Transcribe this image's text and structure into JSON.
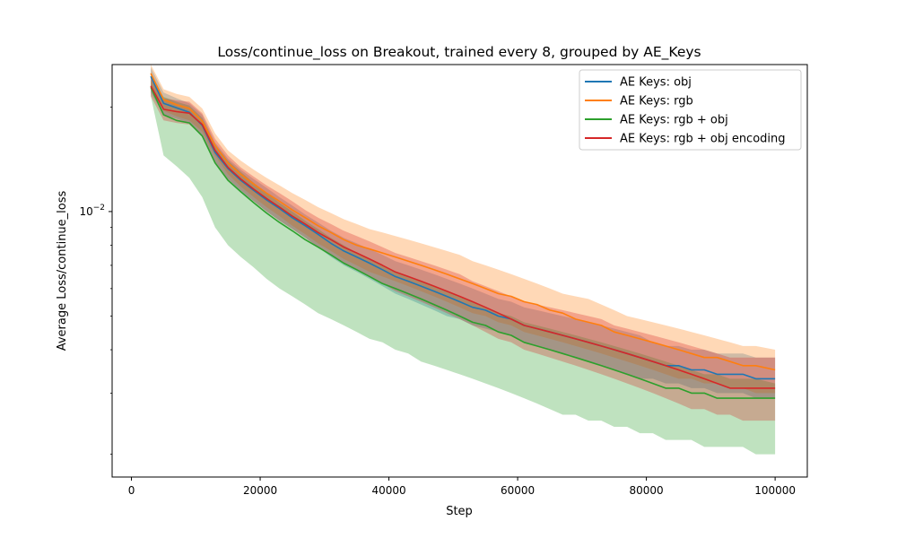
{
  "chart_data": {
    "type": "line",
    "title": "Loss/continue_loss on Breakout, trained every 8, grouped by AE_Keys",
    "xlabel": "Step",
    "ylabel": "Average Loss/continue_loss",
    "y_scale": "log",
    "xlim": [
      -3000,
      105000
    ],
    "ylim": [
      0.00172,
      0.0265
    ],
    "x_ticks": [
      0,
      20000,
      40000,
      60000,
      80000,
      100000
    ],
    "x_tick_labels": [
      "0",
      "20000",
      "40000",
      "60000",
      "80000",
      "100000"
    ],
    "y_major_tick": 0.01,
    "y_major_tick_base": "10",
    "y_major_tick_exp": "−2",
    "legend_position": "upper right",
    "grid": false,
    "x": [
      3000,
      5000,
      7000,
      9000,
      11000,
      13000,
      15000,
      17000,
      19000,
      21000,
      23000,
      25000,
      27000,
      29000,
      31000,
      33000,
      35000,
      37000,
      39000,
      41000,
      43000,
      45000,
      47000,
      49000,
      51000,
      53000,
      55000,
      57000,
      59000,
      61000,
      63000,
      65000,
      67000,
      69000,
      71000,
      73000,
      75000,
      77000,
      79000,
      81000,
      83000,
      85000,
      87000,
      89000,
      91000,
      93000,
      95000,
      97000,
      100000
    ],
    "series": [
      {
        "name": "AE Keys: obj",
        "color": "#1f77b4",
        "values": [
          0.0245,
          0.0205,
          0.0199,
          0.0193,
          0.0177,
          0.0148,
          0.0133,
          0.0123,
          0.0115,
          0.0108,
          0.0102,
          0.0096,
          0.0091,
          0.0086,
          0.0081,
          0.0077,
          0.0074,
          0.0071,
          0.0068,
          0.0065,
          0.0063,
          0.0061,
          0.0059,
          0.0057,
          0.0055,
          0.0053,
          0.0052,
          0.005,
          0.0049,
          0.0047,
          0.0046,
          0.0045,
          0.0044,
          0.0043,
          0.0042,
          0.0041,
          0.004,
          0.0039,
          0.0038,
          0.0037,
          0.0036,
          0.0036,
          0.0035,
          0.0035,
          0.0034,
          0.0034,
          0.0034,
          0.0033,
          0.0033
        ],
        "lower": [
          0.022,
          0.019,
          0.0185,
          0.018,
          0.0165,
          0.0138,
          0.0124,
          0.0114,
          0.0107,
          0.01,
          0.0094,
          0.0089,
          0.0084,
          0.0079,
          0.0074,
          0.007,
          0.0067,
          0.0064,
          0.0061,
          0.0058,
          0.0056,
          0.0054,
          0.0052,
          0.005,
          0.0049,
          0.0047,
          0.0046,
          0.0045,
          0.0044,
          0.0042,
          0.0041,
          0.004,
          0.0039,
          0.0038,
          0.0037,
          0.0036,
          0.0035,
          0.0034,
          0.0033,
          0.0033,
          0.0032,
          0.0032,
          0.0031,
          0.0031,
          0.003,
          0.003,
          0.003,
          0.0029,
          0.0029
        ],
        "upper": [
          0.026,
          0.022,
          0.0212,
          0.0205,
          0.019,
          0.0158,
          0.0142,
          0.0132,
          0.0124,
          0.0117,
          0.011,
          0.0104,
          0.0098,
          0.0093,
          0.0088,
          0.0084,
          0.0081,
          0.0078,
          0.0075,
          0.0072,
          0.007,
          0.0068,
          0.0066,
          0.0064,
          0.0062,
          0.006,
          0.0058,
          0.0056,
          0.0055,
          0.0053,
          0.0052,
          0.0051,
          0.005,
          0.0049,
          0.0048,
          0.0047,
          0.0046,
          0.0045,
          0.0044,
          0.0042,
          0.0041,
          0.0041,
          0.004,
          0.004,
          0.0039,
          0.0039,
          0.0039,
          0.0038,
          0.0038
        ]
      },
      {
        "name": "AE Keys: rgb",
        "color": "#ff7f0e",
        "values": [
          0.025,
          0.021,
          0.0203,
          0.0198,
          0.0182,
          0.0155,
          0.0138,
          0.0128,
          0.012,
          0.0113,
          0.0107,
          0.0101,
          0.0096,
          0.0091,
          0.0087,
          0.0083,
          0.008,
          0.0078,
          0.0076,
          0.0074,
          0.0072,
          0.007,
          0.0068,
          0.0066,
          0.0064,
          0.0062,
          0.006,
          0.0058,
          0.0057,
          0.0055,
          0.0054,
          0.0052,
          0.0051,
          0.0049,
          0.0048,
          0.0047,
          0.0045,
          0.0044,
          0.0043,
          0.0042,
          0.0041,
          0.004,
          0.0039,
          0.0038,
          0.0038,
          0.0037,
          0.0036,
          0.0036,
          0.0035
        ],
        "lower": [
          0.023,
          0.0195,
          0.0188,
          0.0183,
          0.017,
          0.0145,
          0.0128,
          0.0118,
          0.011,
          0.0103,
          0.0097,
          0.0091,
          0.0086,
          0.0081,
          0.0077,
          0.0073,
          0.007,
          0.0067,
          0.0065,
          0.0063,
          0.0061,
          0.0059,
          0.0057,
          0.0055,
          0.0053,
          0.0051,
          0.005,
          0.0048,
          0.0047,
          0.0045,
          0.0044,
          0.0043,
          0.0042,
          0.0041,
          0.004,
          0.0039,
          0.0038,
          0.0037,
          0.0036,
          0.0035,
          0.0034,
          0.0033,
          0.0033,
          0.0032,
          0.0032,
          0.0031,
          0.0031,
          0.003,
          0.003
        ],
        "upper": [
          0.0265,
          0.0225,
          0.0218,
          0.0214,
          0.0198,
          0.0168,
          0.015,
          0.014,
          0.0132,
          0.0125,
          0.0119,
          0.0113,
          0.0108,
          0.0103,
          0.0099,
          0.0095,
          0.0092,
          0.0089,
          0.0087,
          0.0085,
          0.0083,
          0.0081,
          0.0079,
          0.0077,
          0.0075,
          0.0072,
          0.007,
          0.0068,
          0.0066,
          0.0064,
          0.0062,
          0.006,
          0.0058,
          0.0057,
          0.0056,
          0.0054,
          0.0052,
          0.005,
          0.0049,
          0.0048,
          0.0047,
          0.0046,
          0.0045,
          0.0044,
          0.0043,
          0.0042,
          0.0041,
          0.0041,
          0.004
        ]
      },
      {
        "name": "AE Keys: rgb + obj",
        "color": "#2ca02c",
        "values": [
          0.0228,
          0.019,
          0.0183,
          0.018,
          0.0165,
          0.0138,
          0.0123,
          0.0114,
          0.0106,
          0.0099,
          0.0093,
          0.0088,
          0.0083,
          0.0079,
          0.0075,
          0.0071,
          0.0068,
          0.0065,
          0.0062,
          0.006,
          0.0058,
          0.0056,
          0.0054,
          0.0052,
          0.005,
          0.0048,
          0.0047,
          0.0045,
          0.0044,
          0.0042,
          0.0041,
          0.004,
          0.0039,
          0.0038,
          0.0037,
          0.0036,
          0.0035,
          0.0034,
          0.0033,
          0.0032,
          0.0031,
          0.0031,
          0.003,
          0.003,
          0.0029,
          0.0029,
          0.0029,
          0.0029,
          0.0029
        ],
        "lower": [
          0.0215,
          0.0145,
          0.0135,
          0.0125,
          0.011,
          0.009,
          0.008,
          0.0074,
          0.0069,
          0.0064,
          0.006,
          0.0057,
          0.0054,
          0.0051,
          0.0049,
          0.0047,
          0.0045,
          0.0043,
          0.0042,
          0.004,
          0.0039,
          0.0037,
          0.0036,
          0.0035,
          0.0034,
          0.0033,
          0.0032,
          0.0031,
          0.003,
          0.0029,
          0.0028,
          0.0027,
          0.0026,
          0.0026,
          0.0025,
          0.0025,
          0.0024,
          0.0024,
          0.0023,
          0.0023,
          0.0022,
          0.0022,
          0.0022,
          0.0021,
          0.0021,
          0.0021,
          0.0021,
          0.002,
          0.002
        ],
        "upper": [
          0.024,
          0.0214,
          0.0207,
          0.0202,
          0.0186,
          0.0156,
          0.014,
          0.013,
          0.0121,
          0.0113,
          0.0106,
          0.01,
          0.0094,
          0.0089,
          0.0084,
          0.008,
          0.0076,
          0.0073,
          0.007,
          0.0067,
          0.0065,
          0.0063,
          0.0061,
          0.0059,
          0.0057,
          0.0055,
          0.0053,
          0.0051,
          0.005,
          0.0048,
          0.0047,
          0.0046,
          0.0045,
          0.0044,
          0.0043,
          0.0042,
          0.0041,
          0.004,
          0.0039,
          0.0038,
          0.0037,
          0.0036,
          0.0035,
          0.0034,
          0.0034,
          0.0033,
          0.0033,
          0.0033,
          0.0032
        ]
      },
      {
        "name": "AE Keys: rgb + obj encoding",
        "color": "#d62728",
        "values": [
          0.023,
          0.0197,
          0.0194,
          0.0192,
          0.0178,
          0.015,
          0.0134,
          0.0124,
          0.0116,
          0.0109,
          0.0103,
          0.0097,
          0.0092,
          0.0087,
          0.0083,
          0.0079,
          0.0076,
          0.0073,
          0.007,
          0.0067,
          0.0065,
          0.0063,
          0.0061,
          0.0059,
          0.0057,
          0.0055,
          0.0053,
          0.0051,
          0.0049,
          0.0047,
          0.0046,
          0.0045,
          0.0044,
          0.0043,
          0.0042,
          0.0041,
          0.004,
          0.0039,
          0.0038,
          0.0037,
          0.0036,
          0.0035,
          0.0034,
          0.0033,
          0.0032,
          0.0031,
          0.0031,
          0.0031,
          0.0031
        ],
        "lower": [
          0.0215,
          0.0183,
          0.018,
          0.0178,
          0.0165,
          0.0139,
          0.0124,
          0.0115,
          0.0107,
          0.01,
          0.0094,
          0.0089,
          0.0084,
          0.0079,
          0.0075,
          0.0071,
          0.0068,
          0.0065,
          0.0062,
          0.0059,
          0.0057,
          0.0055,
          0.0053,
          0.0051,
          0.0049,
          0.0047,
          0.0045,
          0.0043,
          0.0042,
          0.004,
          0.0039,
          0.0038,
          0.0037,
          0.0036,
          0.0035,
          0.0034,
          0.0033,
          0.0032,
          0.0031,
          0.003,
          0.0029,
          0.0028,
          0.0027,
          0.0027,
          0.0026,
          0.0026,
          0.0025,
          0.0025,
          0.0025
        ],
        "upper": [
          0.0245,
          0.0212,
          0.0209,
          0.0207,
          0.0192,
          0.0162,
          0.0145,
          0.0134,
          0.0126,
          0.0119,
          0.0113,
          0.0107,
          0.0101,
          0.0096,
          0.0092,
          0.0088,
          0.0085,
          0.0082,
          0.0079,
          0.0076,
          0.0074,
          0.0072,
          0.007,
          0.0068,
          0.0066,
          0.0063,
          0.0061,
          0.0059,
          0.0057,
          0.0055,
          0.0054,
          0.0053,
          0.0052,
          0.0051,
          0.005,
          0.0049,
          0.0047,
          0.0046,
          0.0045,
          0.0044,
          0.0043,
          0.0042,
          0.0041,
          0.004,
          0.0039,
          0.0038,
          0.0038,
          0.0038,
          0.0038
        ]
      }
    ]
  }
}
